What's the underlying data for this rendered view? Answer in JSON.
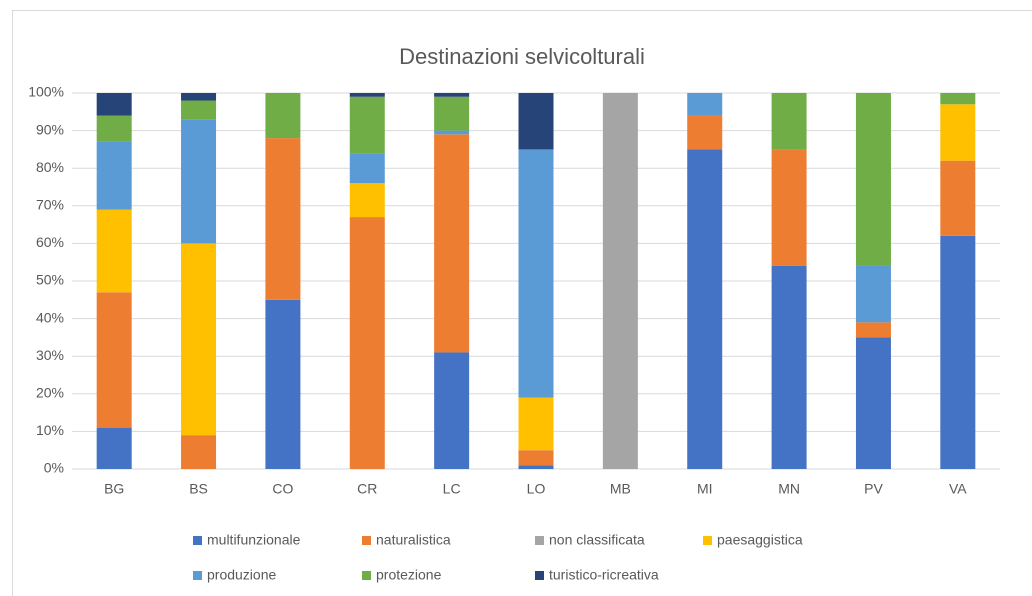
{
  "chart_data": {
    "type": "stacked_bar",
    "title": "Destinazioni selvicolturali",
    "categories": [
      "BG",
      "BS",
      "CO",
      "CR",
      "LC",
      "LO",
      "MB",
      "MI",
      "MN",
      "PV",
      "VA"
    ],
    "series": [
      {
        "name": "multifunzionale",
        "color": "#4472c4",
        "values": [
          11,
          0,
          45,
          0,
          31,
          1,
          0,
          85,
          54,
          35,
          62
        ]
      },
      {
        "name": "naturalistica",
        "color": "#ed7d31",
        "values": [
          36,
          9,
          43,
          67,
          58,
          4,
          0,
          9,
          31,
          4,
          20
        ]
      },
      {
        "name": "non classificata",
        "color": "#a5a5a5",
        "values": [
          0,
          0,
          0,
          0,
          0,
          0,
          100,
          0,
          0,
          0,
          0
        ]
      },
      {
        "name": "paesaggistica",
        "color": "#ffc000",
        "values": [
          22,
          51,
          0,
          9,
          0,
          14,
          0,
          0,
          0,
          0,
          15
        ]
      },
      {
        "name": "produzione",
        "color": "#5b9bd5",
        "values": [
          18,
          33,
          0,
          8,
          1,
          66,
          0,
          6,
          0,
          15,
          0
        ]
      },
      {
        "name": "protezione",
        "color": "#70ad47",
        "values": [
          7,
          5,
          12,
          15,
          9,
          0,
          0,
          0,
          15,
          46,
          3
        ]
      },
      {
        "name": "turistico-ricreativa",
        "color": "#264478",
        "values": [
          6,
          2,
          0,
          1,
          1,
          15,
          0,
          0,
          0,
          0,
          0
        ]
      }
    ],
    "ylim": [
      0,
      100
    ],
    "yticks": [
      {
        "value": 0,
        "label": "0%"
      },
      {
        "value": 10,
        "label": "10%"
      },
      {
        "value": 20,
        "label": "20%"
      },
      {
        "value": 30,
        "label": "30%"
      },
      {
        "value": 40,
        "label": "40%"
      },
      {
        "value": 50,
        "label": "50%"
      },
      {
        "value": 60,
        "label": "60%"
      },
      {
        "value": 70,
        "label": "70%"
      },
      {
        "value": 80,
        "label": "80%"
      },
      {
        "value": 90,
        "label": "90%"
      },
      {
        "value": 100,
        "label": "100%"
      }
    ],
    "grid": true
  }
}
